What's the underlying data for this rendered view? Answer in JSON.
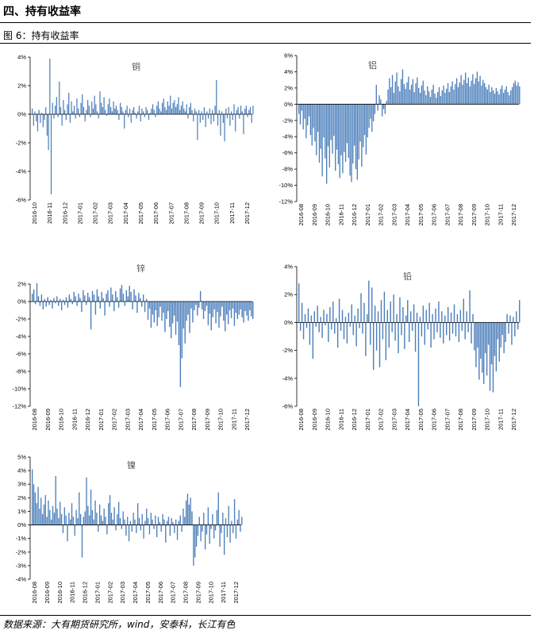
{
  "header": {
    "section_title": "四、持有收益率",
    "figure_title": "图 6：持有收益率",
    "source": "数据来源：大有期货研究所，wind，安泰科，长江有色"
  },
  "colors": {
    "bar": "#4a7ebb",
    "axis": "#000000"
  },
  "chart_data": [
    {
      "type": "bar",
      "title": "铜",
      "ylim": [
        -6,
        4
      ],
      "yticks": [
        -6,
        -4,
        -2,
        0,
        2,
        4
      ],
      "xticks": [
        "2016-10",
        "2016-11",
        "2016-12",
        "2017-01",
        "2017-02",
        "2017-03",
        "2017-04",
        "2017-05",
        "2017-06",
        "2017-07",
        "2017-08",
        "2017-09",
        "2017-10",
        "2017-11",
        "2017-12"
      ],
      "values": [
        0.4,
        -0.8,
        0.2,
        -0.5,
        -1.2,
        0.3,
        -0.6,
        0.1,
        -0.9,
        -0.4,
        0.5,
        -1.5,
        -2.5,
        3.9,
        -5.6,
        0.8,
        -0.3,
        0.6,
        1.2,
        -0.2,
        2.3,
        0.5,
        -0.8,
        1.0,
        0.3,
        -0.4,
        0.7,
        1.5,
        -0.6,
        0.9,
        0.2,
        0.6,
        -0.3,
        1.1,
        0.4,
        -0.2,
        0.8,
        1.4,
        0.5,
        -0.5,
        0.3,
        1.0,
        0.6,
        -0.2,
        0.9,
        0.4,
        1.3,
        0.7,
        0.2,
        -0.3,
        1.6,
        0.8,
        0.5,
        1.2,
        0.3,
        -0.1,
        0.7,
        1.1,
        0.5,
        0.2,
        0.9,
        0.4,
        0.6,
        0.3,
        -0.4,
        0.8,
        0.5,
        0.2,
        -1.0,
        0.3,
        0.6,
        -0.2,
        0.4,
        -0.6,
        0.3,
        0.5,
        0.1,
        -0.3,
        0.2,
        0.6,
        -0.5,
        0.4,
        0.2,
        -0.2,
        0.5,
        0.3,
        -0.4,
        0.1,
        0.4,
        0.7,
        0.3,
        -0.2,
        0.6,
        0.9,
        0.4,
        0.2,
        0.8,
        1.1,
        0.5,
        0.3,
        0.9,
        0.6,
        1.3,
        0.4,
        0.8,
        1.0,
        0.5,
        0.7,
        1.2,
        0.3,
        0.6,
        0.9,
        0.4,
        0.2,
        0.7,
        -0.3,
        0.5,
        0.8,
        0.3,
        -0.5,
        0.4,
        0.2,
        -1.8,
        0.3,
        -0.6,
        0.2,
        -0.4,
        0.5,
        -0.9,
        0.2,
        -0.3,
        0.4,
        -0.7,
        0.3,
        -0.5,
        0.6,
        2.4,
        -0.8,
        0.3,
        -1.5,
        0.2,
        -0.6,
        -1.9,
        0.4,
        -0.3,
        0.5,
        -0.8,
        0.2,
        -0.4,
        0.7,
        -1.2,
        0.3,
        0.5,
        -0.3,
        0.6,
        0.2,
        -1.4,
        0.4,
        0.6,
        -0.2,
        0.3,
        0.5,
        -0.6,
        0.6
      ]
    },
    {
      "type": "bar",
      "title": "铝",
      "ylim": [
        -12,
        6
      ],
      "yticks": [
        -12,
        -10,
        -8,
        -6,
        -4,
        -2,
        0,
        2,
        4,
        6
      ],
      "xticks": [
        "2016-08",
        "2016-09",
        "2016-10",
        "2016-11",
        "2016-12",
        "2017-01",
        "2017-02",
        "2017-03",
        "2017-04",
        "2017-05",
        "2017-06",
        "2017-07",
        "2017-08",
        "2017-09",
        "2017-10",
        "2017-11",
        "2017-12"
      ],
      "values": [
        -1.2,
        -2.5,
        -0.8,
        -3.1,
        -1.8,
        -4.2,
        -2.6,
        -1.5,
        -3.8,
        -5.1,
        -2.9,
        -4.6,
        -6.3,
        -3.4,
        -7.2,
        -5.5,
        -8.9,
        -4.1,
        -6.7,
        -9.8,
        -5.2,
        -7.8,
        -4.4,
        -6.1,
        -3.9,
        -8.2,
        -5.6,
        -7.4,
        -9.1,
        -6.3,
        -8.5,
        -5.9,
        -7.1,
        -4.8,
        -6.6,
        -8.8,
        -9.6,
        -7.3,
        -5.1,
        -8.0,
        -9.3,
        -6.8,
        -4.6,
        -7.7,
        -5.3,
        -3.8,
        -6.2,
        -4.1,
        -2.9,
        -1.8,
        -3.4,
        -2.1,
        -1.2,
        2.4,
        -0.8,
        1.1,
        0.6,
        -1.5,
        -0.6,
        -1.2,
        0.4,
        1.8,
        3.2,
        2.1,
        3.6,
        1.4,
        2.8,
        3.9,
        2.2,
        1.6,
        3.1,
        4.3,
        2.5,
        1.9,
        2.7,
        3.4,
        1.8,
        2.4,
        3.1,
        1.5,
        2.6,
        3.3,
        2.0,
        1.4,
        2.3,
        2.9,
        1.7,
        1.1,
        2.2,
        1.6,
        0.9,
        1.8,
        2.4,
        1.3,
        0.8,
        1.5,
        2.1,
        1.0,
        1.7,
        2.3,
        1.4,
        1.9,
        2.6,
        1.5,
        2.2,
        2.8,
        1.8,
        2.5,
        3.2,
        2.1,
        2.7,
        3.6,
        2.4,
        3.0,
        3.9,
        2.6,
        3.3,
        2.2,
        2.9,
        3.7,
        2.5,
        3.2,
        4.0,
        2.8,
        3.5,
        2.3,
        3.0,
        2.6,
        2.1,
        1.8,
        2.4,
        1.5,
        2.1,
        1.7,
        1.3,
        2.0,
        1.6,
        1.2,
        1.9,
        2.3,
        1.4,
        1.8,
        2.2,
        1.5,
        1.1,
        1.7,
        2.1,
        2.6,
        2.9,
        2.3,
        2.7,
        2.2
      ]
    },
    {
      "type": "bar",
      "title": "锌",
      "ylim": [
        -12,
        2
      ],
      "yticks": [
        -12,
        -10,
        -8,
        -6,
        -4,
        -2,
        0,
        2
      ],
      "xticks": [
        "2016-08",
        "2016-09",
        "2016-10",
        "2016-11",
        "2016-12",
        "2017-01",
        "2017-02",
        "2017-03",
        "2017-04",
        "2017-05",
        "2017-06",
        "2017-07",
        "2017-08",
        "2017-09",
        "2017-10",
        "2017-11",
        "2017-12"
      ],
      "values": [
        0.9,
        1.4,
        -0.3,
        2.1,
        0.6,
        -0.5,
        0.8,
        -0.9,
        0.3,
        -0.6,
        0.5,
        -0.4,
        0.2,
        -0.8,
        0.4,
        -0.2,
        0.6,
        -0.5,
        0.3,
        -1.0,
        0.2,
        -0.4,
        0.5,
        -0.7,
        0.8,
        0.3,
        -0.3,
        1.1,
        0.6,
        -0.5,
        0.9,
        0.4,
        -1.2,
        1.3,
        0.7,
        -0.4,
        1.0,
        0.5,
        -3.2,
        1.2,
        0.8,
        -1.5,
        1.4,
        0.6,
        -0.8,
        1.1,
        0.4,
        -1.6,
        0.9,
        1.3,
        -0.6,
        1.6,
        0.8,
        -1.1,
        1.2,
        0.5,
        -0.7,
        1.5,
        1.9,
        0.9,
        -0.5,
        1.3,
        0.6,
        1.8,
        1.1,
        -0.9,
        1.4,
        0.7,
        -1.3,
        1.0,
        0.4,
        -0.6,
        0.8,
        -1.2,
        0.3,
        -2.1,
        -0.8,
        -3.0,
        -1.5,
        -2.4,
        -1.0,
        -2.8,
        -1.8,
        -0.6,
        -2.2,
        -1.3,
        -3.5,
        -2.0,
        -1.1,
        -2.9,
        -4.2,
        -2.5,
        -1.6,
        -3.8,
        -2.3,
        -5.0,
        -9.8,
        -6.5,
        -3.1,
        -4.8,
        -2.2,
        -1.5,
        -3.6,
        -0.8,
        -2.4,
        -1.0,
        -0.4,
        -1.6,
        -0.7,
        1.2,
        -0.9,
        -2.0,
        -1.1,
        -0.5,
        -2.7,
        -1.4,
        -3.3,
        -1.8,
        -0.9,
        -2.5,
        -1.2,
        -3.0,
        -1.7,
        -0.6,
        -2.2,
        -3.4,
        -1.5,
        -2.6,
        -1.0,
        -1.9,
        -0.8,
        -2.8,
        -1.3,
        -2.0,
        -1.5,
        -0.9,
        -1.8,
        -2.4,
        -1.1,
        -1.6,
        -2.2,
        -1.0,
        -1.7,
        -2.0
      ]
    },
    {
      "type": "bar",
      "title": "铅",
      "ylim": [
        -6,
        4
      ],
      "yticks": [
        -6,
        -4,
        -2,
        0,
        2,
        4
      ],
      "xticks": [
        "2016-08",
        "2016-09",
        "2016-10",
        "2016-11",
        "2016-12",
        "2017-01",
        "2017-02",
        "2017-03",
        "2017-04",
        "2017-05",
        "2017-06",
        "2017-07",
        "2017-08",
        "2017-09",
        "2017-10",
        "2017-11",
        "2017-12"
      ],
      "values": [
        2.8,
        -0.6,
        1.4,
        -1.2,
        0.6,
        -0.4,
        1.0,
        -1.6,
        0.5,
        -2.6,
        0.8,
        -0.3,
        1.2,
        -0.7,
        0.4,
        -1.1,
        0.9,
        -0.2,
        0.6,
        -1.4,
        1.1,
        -0.5,
        1.5,
        -0.8,
        0.3,
        -1.8,
        1.7,
        -0.6,
        0.9,
        -1.2,
        0.4,
        -1.5,
        0.7,
        -0.3,
        1.3,
        -0.9,
        0.5,
        -1.7,
        1.0,
        -0.4,
        2.1,
        -0.8,
        1.4,
        -2.4,
        0.6,
        3.0,
        -1.6,
        2.5,
        -3.4,
        1.2,
        -2.0,
        0.8,
        -3.2,
        1.6,
        -1.2,
        2.2,
        -2.7,
        0.9,
        -1.8,
        1.5,
        -0.7,
        2.0,
        -1.3,
        0.6,
        -2.2,
        1.8,
        -0.9,
        1.1,
        -1.9,
        0.5,
        1.6,
        -1.4,
        0.8,
        -0.6,
        1.3,
        -2.1,
        0.7,
        -6.0,
        0.4,
        -1.0,
        1.2,
        -1.6,
        0.9,
        -0.5,
        1.4,
        -1.8,
        0.6,
        -1.2,
        1.0,
        -0.7,
        1.5,
        -1.1,
        0.8,
        -1.5,
        0.5,
        -0.9,
        1.1,
        -1.3,
        0.7,
        -0.8,
        1.3,
        -1.0,
        0.6,
        -1.4,
        0.9,
        -0.6,
        1.7,
        -1.2,
        0.8,
        -0.7,
        2.3,
        -1.5,
        0.6,
        -2.0,
        -3.2,
        -1.8,
        -4.1,
        -2.6,
        -3.6,
        -4.4,
        -2.2,
        -3.8,
        -1.6,
        -4.9,
        -3.0,
        -5.0,
        -2.4,
        -3.5,
        -1.2,
        -2.8,
        -1.8,
        -0.9,
        -2.2,
        -1.4,
        0.6,
        -0.8,
        0.5,
        -1.6,
        0.4,
        -1.0,
        0.8,
        -0.5,
        1.6
      ]
    },
    {
      "type": "bar",
      "title": "镍",
      "ylim": [
        -4,
        5
      ],
      "yticks": [
        -4,
        -3,
        -2,
        -1,
        0,
        1,
        2,
        3,
        4,
        5
      ],
      "xticks": [
        "2016-08",
        "2016-09",
        "2016-10",
        "2016-11",
        "2016-12",
        "2017-01",
        "2017-02",
        "2017-03",
        "2017-04",
        "2017-05",
        "2017-06",
        "2017-07",
        "2017-08",
        "2017-09",
        "2017-10",
        "2017-11",
        "2017-12"
      ],
      "values": [
        4.1,
        3.0,
        2.4,
        1.6,
        2.8,
        1.2,
        2.0,
        0.8,
        1.5,
        2.2,
        0.6,
        1.8,
        1.1,
        0.4,
        1.4,
        0.9,
        3.6,
        1.2,
        0.5,
        1.7,
        0.8,
        -0.6,
        1.3,
        0.7,
        -1.2,
        0.9,
        0.4,
        1.6,
        0.6,
        -0.8,
        1.1,
        0.5,
        2.4,
        0.8,
        -2.4,
        0.6,
        1.0,
        3.5,
        1.4,
        0.7,
        2.6,
        1.1,
        0.4,
        1.8,
        0.9,
        -0.5,
        1.5,
        0.7,
        0.3,
        1.2,
        0.6,
        -0.7,
        1.6,
        2.2,
        0.9,
        0.4,
        1.3,
        -0.4,
        0.8,
        1.7,
        0.5,
        -0.3,
        1.0,
        0.4,
        -0.8,
        0.6,
        -1.2,
        0.3,
        -0.5,
        0.9,
        0.4,
        -0.6,
        1.6,
        0.5,
        -0.4,
        0.8,
        -1.0,
        0.3,
        1.2,
        0.5,
        -0.7,
        0.9,
        0.4,
        -0.3,
        0.7,
        -0.9,
        0.6,
        0.2,
        -0.5,
        0.8,
        0.4,
        -1.3,
        0.3,
        0.6,
        -0.8,
        0.5,
        0.2,
        -0.6,
        0.4,
        -1.1,
        0.3,
        0.7,
        -0.5,
        1.2,
        0.6,
        1.8,
        2.3,
        1.5,
        2.0,
        1.0,
        -3.0,
        -2.4,
        -1.6,
        -0.8,
        0.6,
        -1.2,
        -0.5,
        0.9,
        -1.8,
        -0.7,
        1.3,
        -1.4,
        -0.3,
        0.8,
        -1.0,
        -0.4,
        1.1,
        2.4,
        -1.6,
        -0.6,
        0.9,
        -2.2,
        0.5,
        -0.9,
        1.4,
        -1.3,
        0.3,
        -0.6,
        1.9,
        -1.0,
        0.4,
        1.1,
        -0.5,
        0.6
      ]
    }
  ]
}
